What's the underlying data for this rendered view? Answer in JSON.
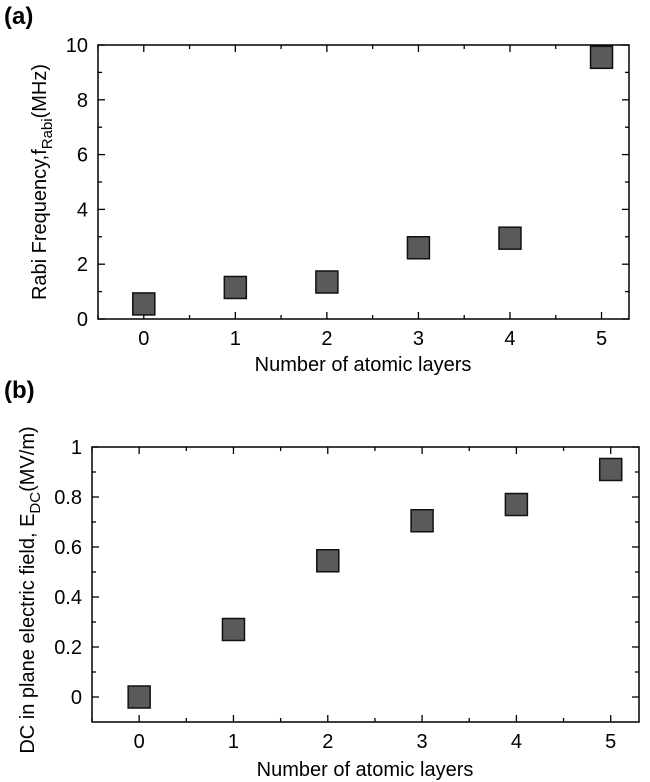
{
  "chart_data": [
    {
      "panel_label": "(a)",
      "type": "scatter",
      "xlabel": "Number of atomic layers",
      "ylabel": {
        "main": "Rabi Frequency,f",
        "sub": "Rabi",
        "suffix": "(MHz)"
      },
      "xlim": [
        -0.5,
        5.3
      ],
      "ylim": [
        0,
        10
      ],
      "xticks": [
        0,
        1,
        2,
        3,
        4,
        5
      ],
      "xtick_labels": [
        "0",
        "1",
        "2",
        "3",
        "4",
        "5"
      ],
      "yticks": [
        0,
        2,
        4,
        6,
        8,
        10
      ],
      "ytick_labels": [
        "0",
        "2",
        "4",
        "6",
        "8",
        "10"
      ],
      "yminor": [
        1,
        3,
        5,
        7,
        9
      ],
      "series": [
        {
          "x": [
            0,
            1,
            2,
            3,
            4,
            5
          ],
          "y": [
            0.55,
            1.15,
            1.35,
            2.6,
            2.95,
            9.55
          ]
        }
      ],
      "grid": false
    },
    {
      "panel_label": "(b)",
      "type": "scatter",
      "xlabel": "Number of atomic layers",
      "ylabel": {
        "main": "DC in plane electric field, E",
        "sub": "DC",
        "suffix": "(MV/m)"
      },
      "xlim": [
        -0.5,
        5.3
      ],
      "ylim": [
        -0.1,
        1.0
      ],
      "xticks": [
        0,
        1,
        2,
        3,
        4,
        5
      ],
      "xtick_labels": [
        "0",
        "1",
        "2",
        "3",
        "4",
        "5"
      ],
      "yticks": [
        0,
        0.2,
        0.4,
        0.6,
        0.8,
        1.0
      ],
      "ytick_labels": [
        "0",
        "0.2",
        "0.4",
        "0.6",
        "0.8",
        "1"
      ],
      "yminor": [
        0.1,
        0.3,
        0.5,
        0.7,
        0.9
      ],
      "series": [
        {
          "x": [
            0,
            1,
            2,
            3,
            4,
            5
          ],
          "y": [
            0.0,
            0.27,
            0.545,
            0.705,
            0.77,
            0.91
          ]
        }
      ],
      "grid": false
    }
  ],
  "colors": {
    "marker_fill": "#5a5a5a",
    "marker_stroke": "#111111"
  }
}
